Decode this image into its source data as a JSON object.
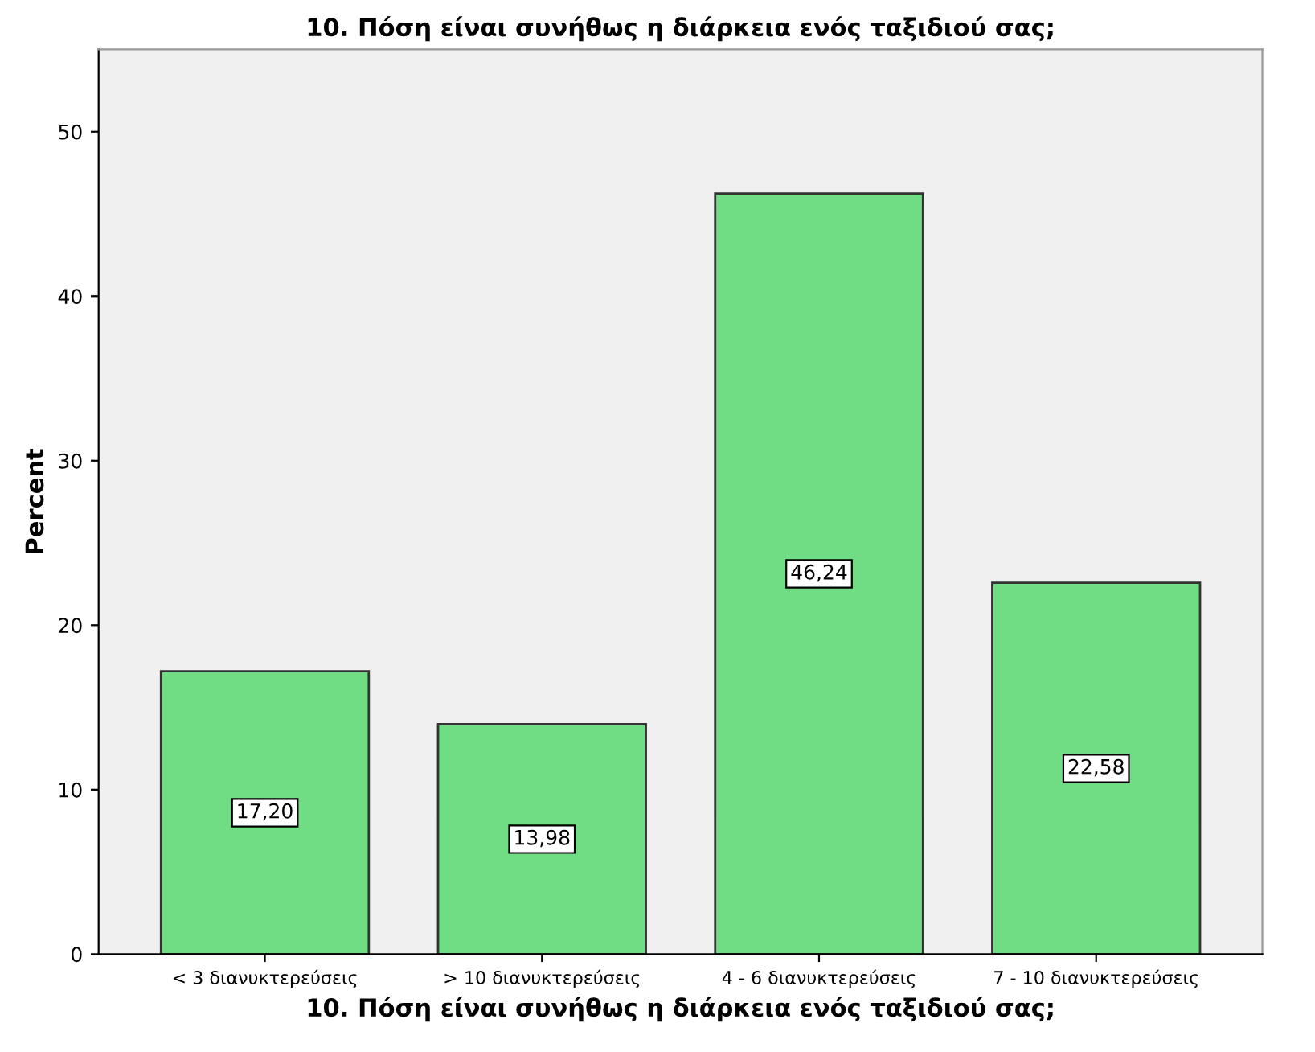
{
  "chart_data": {
    "type": "bar",
    "title": "10. Πόση είναι συνήθως η διάρκεια ενός ταξιδιού σας;",
    "xlabel": "10. Πόση είναι συνήθως η διάρκεια ενός ταξιδιού σας;",
    "ylabel": "Percent",
    "categories": [
      "< 3 διανυκτερεύσεις",
      "> 10 διανυκτερεύσεις",
      "4 - 6 διανυκτερεύσεις",
      "7 - 10 διανυκτερεύσεις"
    ],
    "values": [
      17.2,
      13.98,
      46.24,
      22.58
    ],
    "value_labels": [
      "17,20",
      "13,98",
      "46,24",
      "22,58"
    ],
    "color": "#70dc84",
    "ylim": [
      0,
      55
    ],
    "yticks": [
      0,
      10,
      20,
      30,
      40,
      50
    ],
    "grid": false
  }
}
